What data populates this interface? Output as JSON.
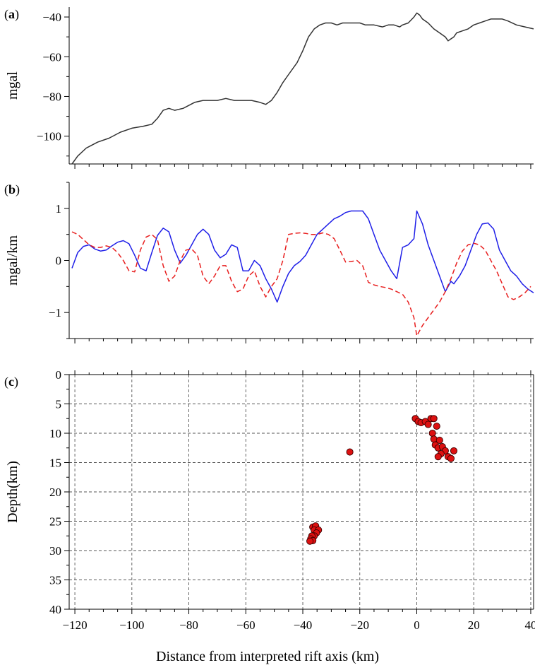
{
  "xlabel": "Distance from interpreted rift axis (km)",
  "chart_data": [
    {
      "panel": "a",
      "panel_label": "(a)",
      "type": "line",
      "ylabel": "mgal",
      "xlim": [
        -122,
        41
      ],
      "ylim": [
        -114,
        -35
      ],
      "y_ticks": [
        -40,
        -60,
        -80,
        -100
      ],
      "x_ticks": [
        -120,
        -100,
        -80,
        -60,
        -40,
        -20,
        0,
        20,
        40
      ],
      "colors": {
        "series": "#333333"
      },
      "series": [
        {
          "style": "solid",
          "color": "#333333",
          "x": [
            -121,
            -119,
            -116,
            -112,
            -108,
            -104,
            -100,
            -96,
            -93,
            -91,
            -89,
            -87,
            -85,
            -82,
            -78,
            -75,
            -72,
            -70,
            -67,
            -64,
            -61,
            -58,
            -55,
            -53,
            -51,
            -49,
            -47,
            -45,
            -42,
            -40,
            -38,
            -36,
            -34,
            -32,
            -30,
            -28,
            -26,
            -24,
            -22,
            -20,
            -18,
            -15,
            -12,
            -10,
            -8,
            -6,
            -5,
            -3,
            -1,
            0,
            1,
            2,
            4,
            6,
            8,
            10,
            11,
            12,
            13,
            14,
            16,
            18,
            20,
            22,
            24,
            26,
            28,
            30,
            32,
            35,
            38,
            41
          ],
          "y": [
            -114,
            -110,
            -106,
            -103,
            -101,
            -98,
            -96,
            -95,
            -94,
            -91,
            -87,
            -86,
            -87,
            -86,
            -83,
            -82,
            -82,
            -82,
            -81,
            -82,
            -82,
            -82,
            -83,
            -84,
            -82,
            -78,
            -73,
            -69,
            -63,
            -57,
            -50,
            -46,
            -44,
            -43,
            -43,
            -44,
            -43,
            -43,
            -43,
            -43,
            -44,
            -44,
            -45,
            -44,
            -44,
            -45,
            -44,
            -43,
            -40,
            -38,
            -39,
            -41,
            -43,
            -46,
            -48,
            -50,
            -52,
            -51,
            -50,
            -48,
            -47,
            -46,
            -44,
            -43,
            -42,
            -41,
            -41,
            -41,
            -42,
            -44,
            -45,
            -46
          ]
        }
      ]
    },
    {
      "panel": "b",
      "panel_label": "(b)",
      "type": "line",
      "ylabel": "mgal/km",
      "xlim": [
        -122,
        41
      ],
      "ylim": [
        -1.5,
        1.5
      ],
      "y_ticks": [
        1,
        0,
        -1
      ],
      "x_ticks": [
        -120,
        -100,
        -80,
        -60,
        -40,
        -20,
        0,
        20,
        40
      ],
      "colors": {
        "solid": "#1f1fe8",
        "dashed": "#e81f1f"
      },
      "series": [
        {
          "style": "solid",
          "color": "#1f1fe8",
          "x": [
            -121,
            -119,
            -117,
            -115,
            -113,
            -111,
            -109,
            -107,
            -105,
            -103,
            -101,
            -99,
            -97,
            -95,
            -93,
            -91,
            -89,
            -87,
            -85,
            -83,
            -81,
            -79,
            -77,
            -75,
            -73,
            -71,
            -69,
            -67,
            -65,
            -63,
            -61,
            -59,
            -57,
            -55,
            -53,
            -51,
            -49,
            -47,
            -45,
            -43,
            -41,
            -39,
            -37,
            -35,
            -33,
            -31,
            -29,
            -27,
            -25,
            -23,
            -21,
            -19,
            -17,
            -15,
            -13,
            -11,
            -9,
            -7,
            -5,
            -3,
            -1,
            0,
            2,
            4,
            6,
            8,
            10,
            12,
            13,
            15,
            17,
            19,
            21,
            23,
            25,
            27,
            29,
            31,
            33,
            35,
            37,
            39,
            41
          ],
          "y": [
            -0.15,
            0.15,
            0.27,
            0.3,
            0.22,
            0.18,
            0.2,
            0.28,
            0.35,
            0.38,
            0.32,
            0.1,
            -0.15,
            -0.2,
            0.15,
            0.48,
            0.62,
            0.55,
            0.2,
            -0.05,
            0.1,
            0.3,
            0.5,
            0.6,
            0.5,
            0.2,
            0.05,
            0.12,
            0.3,
            0.25,
            -0.2,
            -0.2,
            0.0,
            -0.1,
            -0.35,
            -0.55,
            -0.8,
            -0.5,
            -0.25,
            -0.1,
            -0.02,
            0.1,
            0.3,
            0.5,
            0.6,
            0.7,
            0.8,
            0.85,
            0.92,
            0.95,
            0.95,
            0.95,
            0.8,
            0.5,
            0.2,
            0.0,
            -0.2,
            -0.35,
            0.25,
            0.3,
            0.42,
            0.95,
            0.7,
            0.3,
            0.0,
            -0.3,
            -0.6,
            -0.4,
            -0.45,
            -0.3,
            -0.1,
            0.2,
            0.5,
            0.7,
            0.72,
            0.6,
            0.2,
            0.0,
            -0.2,
            -0.3,
            -0.45,
            -0.55,
            -0.62
          ]
        },
        {
          "style": "dashed",
          "color": "#e81f1f",
          "x": [
            -121,
            -119,
            -117,
            -115,
            -113,
            -111,
            -109,
            -107,
            -105,
            -103,
            -101,
            -99,
            -97,
            -95,
            -93,
            -91,
            -89,
            -87,
            -85,
            -83,
            -81,
            -79,
            -77,
            -75,
            -73,
            -71,
            -69,
            -67,
            -65,
            -63,
            -61,
            -59,
            -57,
            -55,
            -53,
            -51,
            -49,
            -47,
            -45,
            -43,
            -41,
            -39,
            -37,
            -35,
            -33,
            -31,
            -29,
            -27,
            -25,
            -23,
            -21,
            -19,
            -17,
            -15,
            -13,
            -11,
            -9,
            -7,
            -5,
            -3,
            -1,
            0,
            2,
            4,
            6,
            8,
            10,
            12,
            14,
            16,
            18,
            20,
            22,
            24,
            26,
            28,
            30,
            32,
            34,
            36,
            38,
            40
          ],
          "y": [
            0.55,
            0.5,
            0.4,
            0.3,
            0.25,
            0.25,
            0.28,
            0.25,
            0.15,
            0.0,
            -0.2,
            -0.22,
            0.2,
            0.45,
            0.5,
            0.4,
            -0.1,
            -0.4,
            -0.3,
            0.0,
            0.2,
            0.22,
            0.1,
            -0.3,
            -0.45,
            -0.3,
            -0.1,
            -0.1,
            -0.4,
            -0.6,
            -0.55,
            -0.3,
            -0.2,
            -0.5,
            -0.7,
            -0.5,
            -0.35,
            0.0,
            0.5,
            0.52,
            0.53,
            0.52,
            0.5,
            0.5,
            0.53,
            0.5,
            0.42,
            0.2,
            -0.03,
            -0.02,
            0.0,
            -0.1,
            -0.42,
            -0.47,
            -0.5,
            -0.52,
            -0.55,
            -0.6,
            -0.65,
            -0.8,
            -1.1,
            -1.45,
            -1.25,
            -1.1,
            -0.95,
            -0.8,
            -0.6,
            -0.35,
            -0.05,
            0.18,
            0.3,
            0.33,
            0.3,
            0.2,
            0.0,
            -0.2,
            -0.45,
            -0.7,
            -0.75,
            -0.7,
            -0.62,
            -0.5
          ]
        }
      ]
    },
    {
      "panel": "c",
      "panel_label": "(c)",
      "type": "scatter",
      "ylabel": "Depth(km)",
      "xlim": [
        -122,
        41
      ],
      "ylim": [
        40,
        0
      ],
      "y_ticks": [
        0,
        5,
        10,
        15,
        20,
        25,
        30,
        35,
        40
      ],
      "x_ticks": [
        -120,
        -100,
        -80,
        -60,
        -40,
        -20,
        0,
        20,
        40
      ],
      "grid": true,
      "colors": {
        "marker_fill": "#dd1111",
        "marker_edge": "#3a0000"
      },
      "points": [
        [
          -0.5,
          7.5
        ],
        [
          0.5,
          8.0
        ],
        [
          1.5,
          8.2
        ],
        [
          3,
          8.0
        ],
        [
          4,
          8.5
        ],
        [
          5,
          7.5
        ],
        [
          6,
          7.5
        ],
        [
          7,
          8.8
        ],
        [
          5.5,
          10.0
        ],
        [
          6,
          11.0
        ],
        [
          8,
          11.2
        ],
        [
          6.5,
          12.0
        ],
        [
          7.5,
          12.5
        ],
        [
          9,
          12.3
        ],
        [
          10,
          13.0
        ],
        [
          8.5,
          13.5
        ],
        [
          7.5,
          14.0
        ],
        [
          11,
          14.0
        ],
        [
          12,
          14.3
        ],
        [
          13,
          13.0
        ],
        [
          -23.5,
          13.2
        ],
        [
          -36.5,
          26.0
        ],
        [
          -35.5,
          25.8
        ],
        [
          -36,
          26.5
        ],
        [
          -34.5,
          26.5
        ],
        [
          -35.2,
          27.0
        ],
        [
          -36,
          27.5
        ],
        [
          -36.8,
          27.5
        ],
        [
          -37.2,
          28.0
        ],
        [
          -36.5,
          28.3
        ],
        [
          -37.5,
          28.4
        ]
      ]
    }
  ]
}
